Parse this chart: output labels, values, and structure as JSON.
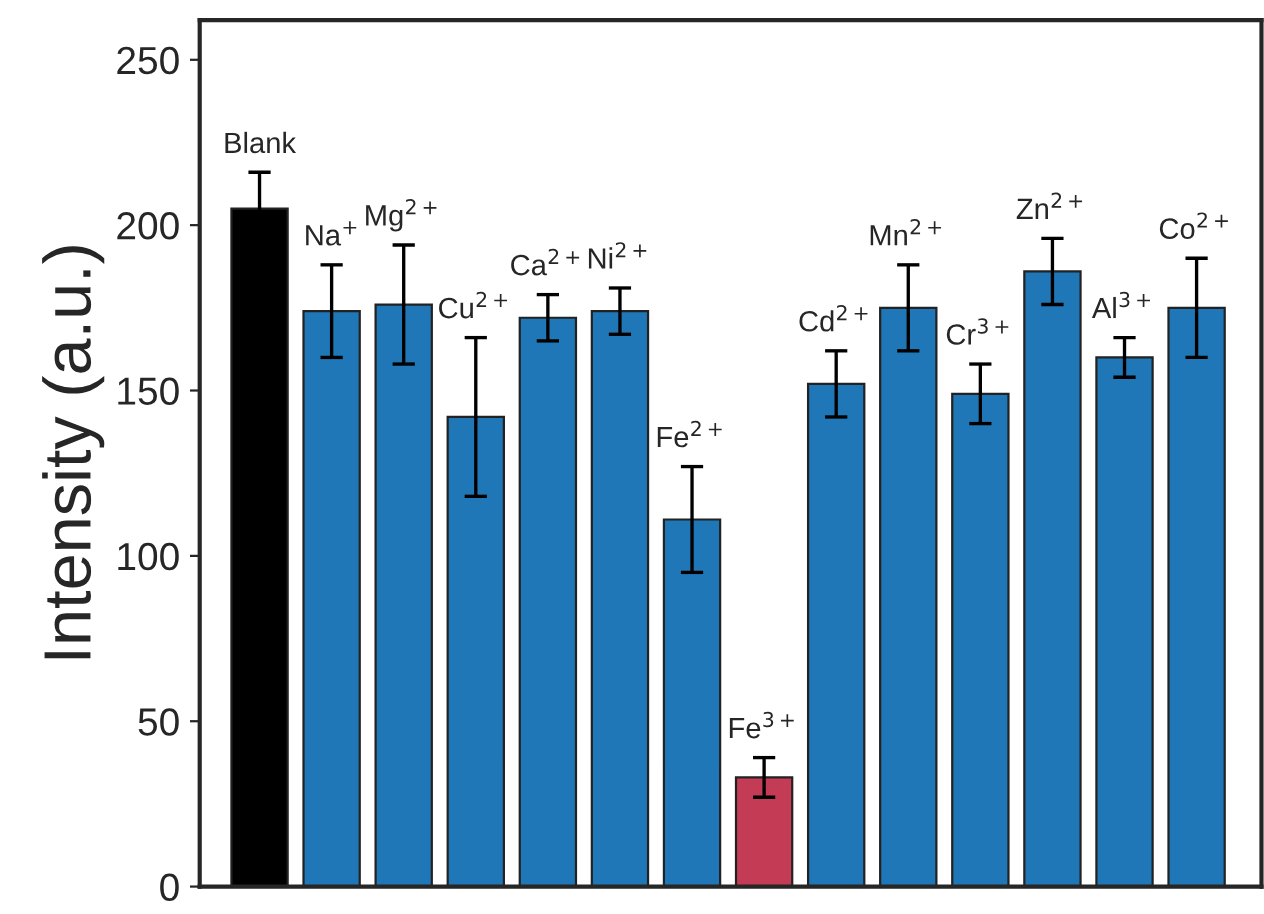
{
  "chart_data": {
    "type": "bar",
    "ylabel": "Intensity (a.u.)",
    "categories": [
      "Blank",
      "Na$^{+}$",
      "Mg$^{2+}$",
      "Cu$^{2+}$",
      "Ca$^{2+}$",
      "Ni$^{2+}$",
      "Fe$^{2+}$",
      "Fe$^{3+}$",
      "Cd$^{2+}$",
      "Mn$^{2+}$",
      "Cr$^{3+}$",
      "Zn$^{2+}$",
      "Al$^{3+}$",
      "Co$^{2+}$"
    ],
    "values": [
      205,
      174,
      176,
      142,
      172,
      174,
      111,
      33,
      152,
      175,
      149,
      186,
      160,
      175
    ],
    "errors": [
      11,
      14,
      18,
      24,
      7,
      7,
      16,
      6,
      10,
      13,
      9,
      10,
      6,
      15
    ],
    "colors": [
      "#000000",
      "#1f77b7",
      "#1f77b7",
      "#1f77b7",
      "#1f77b7",
      "#1f77b7",
      "#1f77b7",
      "#c43b55",
      "#1f77b7",
      "#1f77b7",
      "#1f77b7",
      "#1f77b7",
      "#1f77b7",
      "#1f77b7"
    ],
    "ylim": [
      0,
      262
    ],
    "yticks": [
      0,
      50,
      100,
      150,
      200,
      250
    ],
    "grid": false,
    "legend": false
  }
}
